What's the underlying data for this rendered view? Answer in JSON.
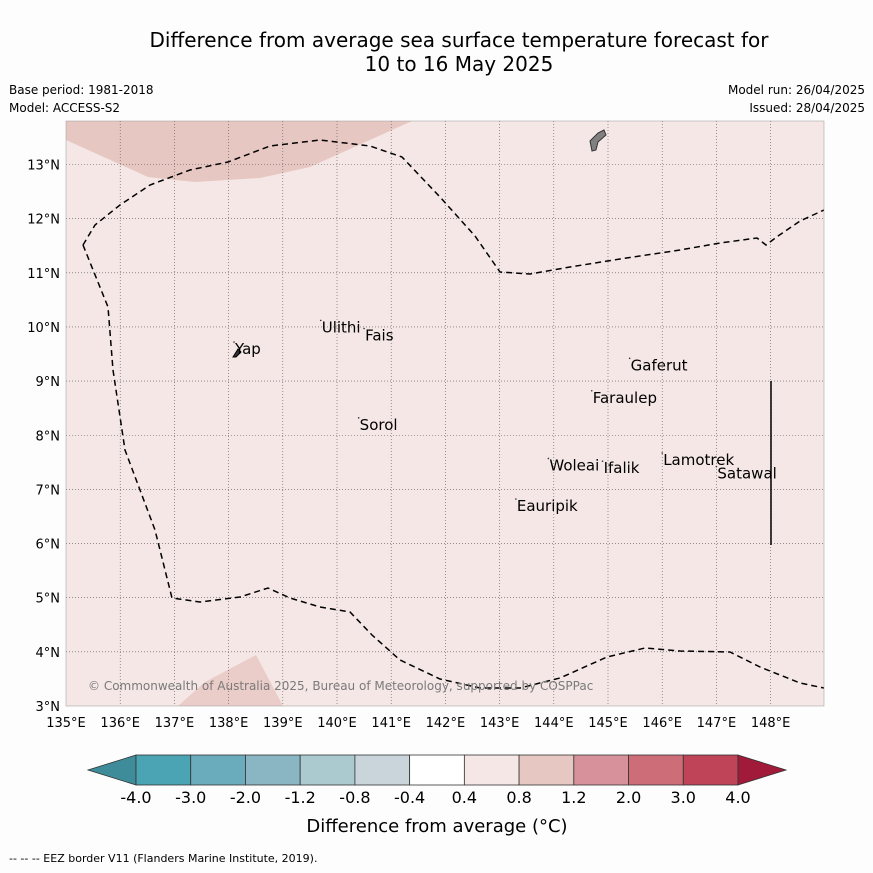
{
  "title_line1": "Difference from average sea surface temperature forecast for",
  "title_line2": "10 to 16 May 2025",
  "base_period": "Base period: 1981-2018",
  "model": "Model: ACCESS-S2",
  "model_run": "Model run: 26/04/2025",
  "issued": "Issued: 28/04/2025",
  "copyright": "© Commonwealth of Australia 2025, Bureau of Meteorology, supported by COSPPac",
  "footnote": "-- -- -- EEZ border V11 (Flanders Marine Institute, 2019).",
  "lon_labels": [
    "135°E",
    "136°E",
    "137°E",
    "138°E",
    "139°E",
    "140°E",
    "141°E",
    "142°E",
    "143°E",
    "144°E",
    "145°E",
    "146°E",
    "147°E",
    "148°E"
  ],
  "lat_labels": [
    "3°N",
    "4°N",
    "5°N",
    "6°N",
    "7°N",
    "8°N",
    "9°N",
    "10°N",
    "11°N",
    "12°N",
    "13°N"
  ],
  "places": [
    {
      "name": "Yap",
      "lon": 138.1,
      "lat": 9.5
    },
    {
      "name": "Ulithi",
      "lon": 139.7,
      "lat": 9.9
    },
    {
      "name": "Fais",
      "lon": 140.5,
      "lat": 9.75
    },
    {
      "name": "Sorol",
      "lon": 140.4,
      "lat": 8.1
    },
    {
      "name": "Gaferut",
      "lon": 145.4,
      "lat": 9.2
    },
    {
      "name": "Faraulep",
      "lon": 144.7,
      "lat": 8.6
    },
    {
      "name": "Woleai",
      "lon": 143.9,
      "lat": 7.35
    },
    {
      "name": "Ifalik",
      "lon": 144.9,
      "lat": 7.3
    },
    {
      "name": "Lamotrek",
      "lon": 146.0,
      "lat": 7.45
    },
    {
      "name": "Satawal",
      "lon": 147.0,
      "lat": 7.2
    },
    {
      "name": "Eauripik",
      "lon": 143.3,
      "lat": 6.6
    }
  ],
  "colorbar": {
    "labels": [
      "-4.0",
      "-3.0",
      "-2.0",
      "-1.2",
      "-0.8",
      "-0.4",
      "0.4",
      "0.8",
      "1.2",
      "2.0",
      "3.0",
      "4.0"
    ],
    "colors": [
      "#3e8c99",
      "#4aa4b3",
      "#6bacbc",
      "#8ab5c2",
      "#abcad0",
      "#c9d5da",
      "#ffffff",
      "#f4e7e6",
      "#e7c7c2",
      "#d6919a",
      "#cc6d78",
      "#bf4458",
      "#a11a3a"
    ],
    "label": "Difference from average (°C)"
  },
  "map_colors": {
    "background": "#f4e7e6",
    "warm_anomaly": "#e7c7c2",
    "land": "#808080"
  }
}
